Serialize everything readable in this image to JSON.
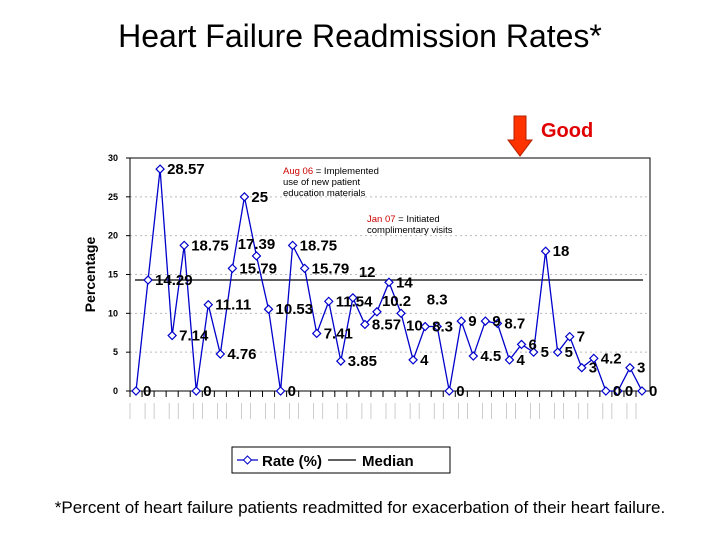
{
  "title": "Heart Failure Readmission Rates*",
  "good_label": "Good",
  "footnote": "*Percent of heart failure patients readmitted for exacerbation of their heart failure.",
  "annotations": [
    {
      "date": "Aug 06",
      "text_lines": [
        "= Implemented",
        "use of new patient",
        "education materials"
      ]
    },
    {
      "date": "Jan 07",
      "text_lines": [
        "= Initiated",
        "complimentary visits"
      ]
    }
  ],
  "colors": {
    "series": "#0000cc",
    "median": "#000000",
    "annotation_date": "#cc0000",
    "good_arrow": "#ff3300"
  },
  "chart_data": {
    "type": "line",
    "title": "Heart Failure Readmission Rates*",
    "ylabel": "Percentage",
    "xlabel": "",
    "ylim": [
      0,
      30
    ],
    "yticks": [
      0,
      5,
      10,
      15,
      20,
      25,
      30
    ],
    "grid": "horizontal dashed",
    "legend_position": "bottom",
    "series": [
      {
        "name": "Rate (%)",
        "marker": "diamond",
        "values": [
          0,
          14.29,
          28.57,
          7.14,
          18.75,
          0,
          11.11,
          4.76,
          15.79,
          25,
          17.39,
          10.53,
          0,
          18.75,
          15.79,
          7.41,
          11.54,
          3.85,
          12,
          8.57,
          10.2,
          14,
          10,
          4,
          8.3,
          8.3,
          0,
          9,
          4.5,
          9,
          8.7,
          4,
          6,
          5,
          18,
          5,
          7,
          3,
          4.2,
          0,
          0,
          3,
          0
        ]
      },
      {
        "name": "Median",
        "value": 14.29
      }
    ]
  }
}
